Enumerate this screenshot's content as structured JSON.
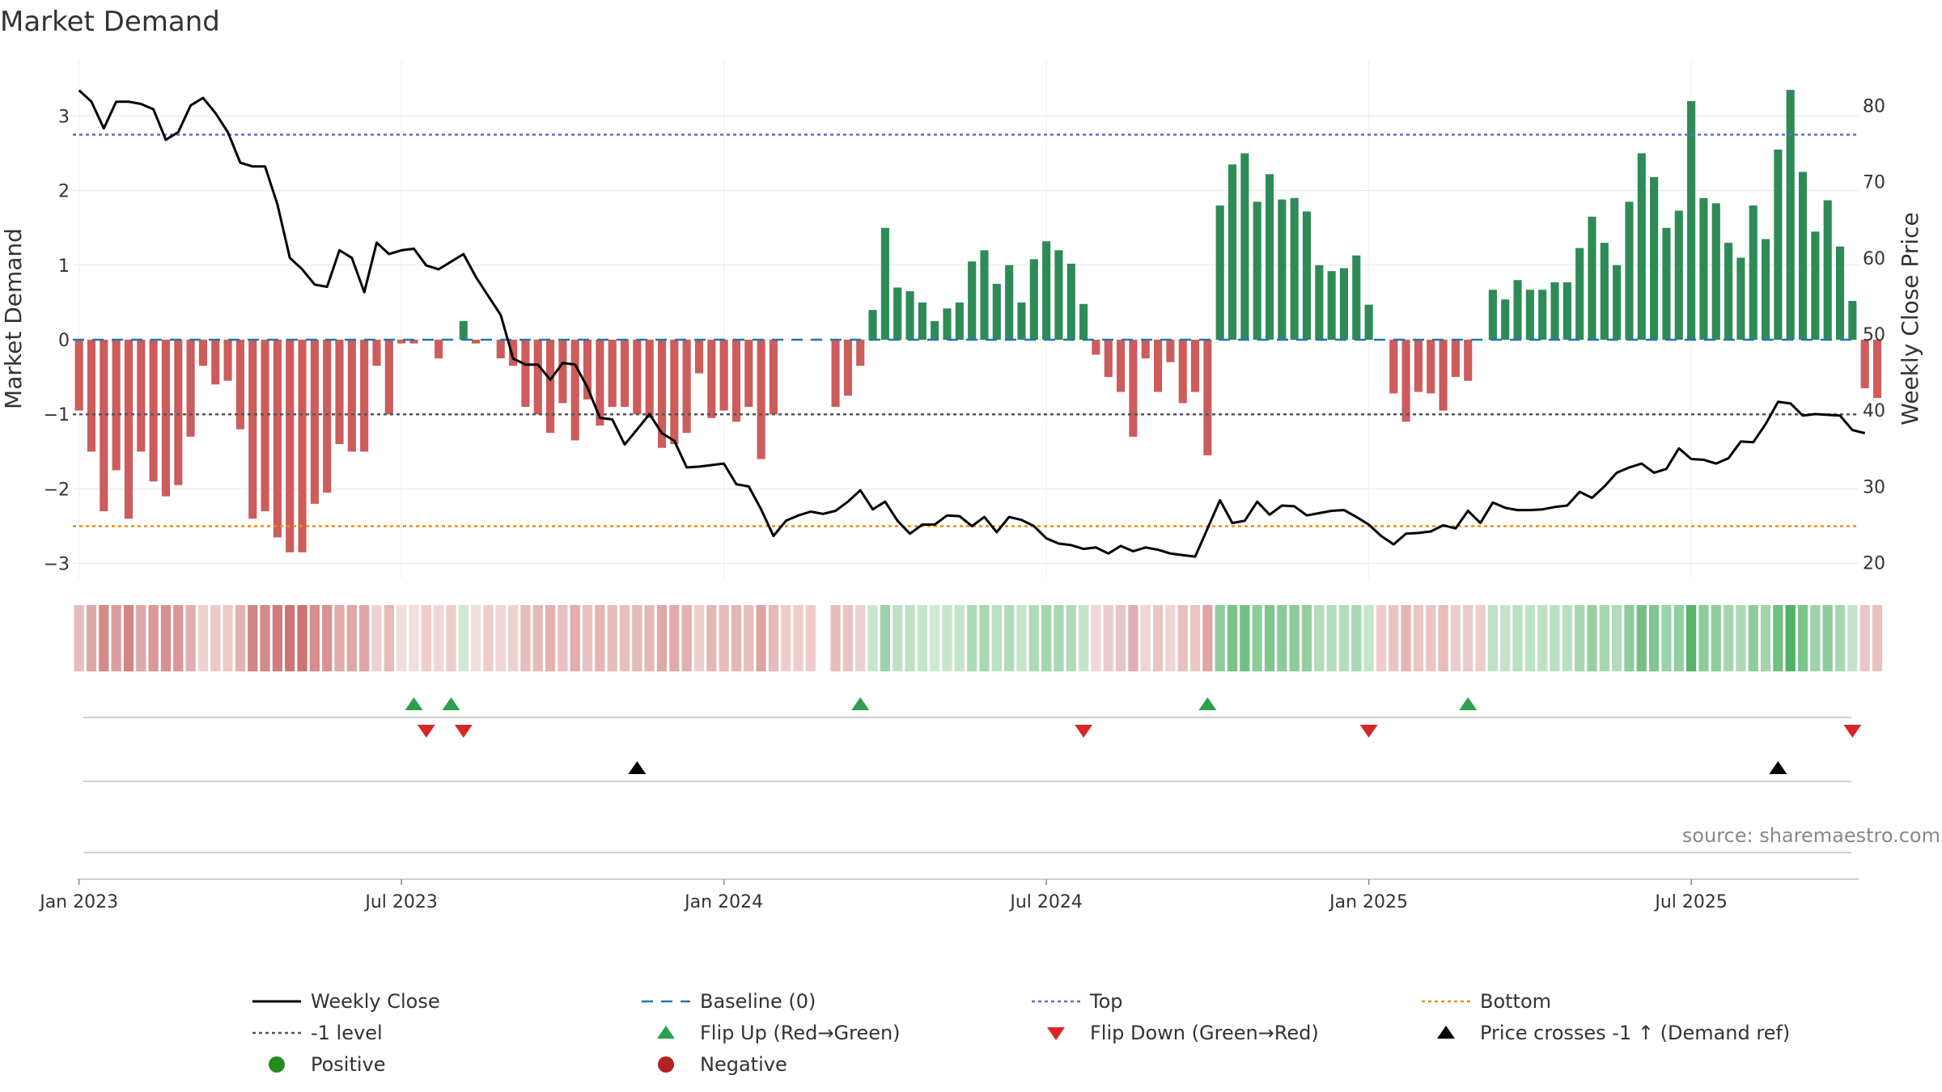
{
  "chart_data": {
    "type": "bar",
    "title": "Market Demand",
    "ylabel_left": "Market Demand",
    "ylabel_right": "Weekly Close Price",
    "ylim_left": [
      -3.3,
      3.7
    ],
    "ylim_right": [
      18,
      83
    ],
    "yticks_left": [
      "3",
      "2",
      "1",
      "0",
      "−1",
      "−2",
      "−3"
    ],
    "yticks_left_values": [
      3,
      2,
      1,
      0,
      -1,
      -2,
      -3
    ],
    "yticks_right": [
      "80",
      "70",
      "60",
      "50",
      "40",
      "30",
      "20"
    ],
    "yticks_right_values": [
      80,
      70,
      60,
      50,
      40,
      30,
      20
    ],
    "xticks": [
      "Jan 2023",
      "Jul 2023",
      "Jan 2024",
      "Jul 2024",
      "Jan 2025",
      "Jul 2025"
    ],
    "xticks_week_index": [
      0.5,
      26.5,
      52.5,
      78.5,
      104.5,
      130.5
    ],
    "levels": {
      "top": 2.75,
      "bottom": -2.5,
      "minus_one": -1,
      "baseline": 0
    },
    "weeks": 144,
    "gap_week": 60,
    "demand": [
      -0.95,
      -1.5,
      -2.3,
      -1.75,
      -2.4,
      -1.5,
      -1.9,
      -2.1,
      -1.95,
      -1.3,
      -0.35,
      -0.6,
      -0.55,
      -1.2,
      -2.4,
      -2.3,
      -2.65,
      -2.85,
      -2.85,
      -2.2,
      -2.05,
      -1.4,
      -1.5,
      -1.5,
      -0.35,
      -1.0,
      -0.05,
      -0.05,
      0.0,
      -0.25,
      0.0,
      0.25,
      -0.05,
      0.0,
      -0.25,
      -0.35,
      -0.9,
      -1.0,
      -1.25,
      -0.85,
      -1.35,
      -0.8,
      -1.15,
      -0.9,
      -0.9,
      -1.0,
      -1.05,
      -1.45,
      -1.4,
      -1.25,
      -0.45,
      -1.05,
      -0.95,
      -1.1,
      -0.9,
      -1.6,
      -1.0,
      0.0,
      0.0,
      0.0,
      null,
      -0.9,
      -0.75,
      -0.35,
      0.4,
      1.5,
      0.7,
      0.65,
      0.5,
      0.25,
      0.42,
      0.5,
      1.05,
      1.2,
      0.75,
      1.0,
      0.5,
      1.08,
      1.32,
      1.2,
      1.02,
      0.48,
      -0.2,
      -0.5,
      -0.7,
      -1.3,
      -0.25,
      -0.7,
      -0.3,
      -0.85,
      -0.7,
      -1.55,
      1.8,
      2.35,
      2.5,
      1.85,
      2.22,
      1.88,
      1.9,
      1.72,
      1.0,
      0.92,
      0.96,
      1.13,
      0.47,
      0.0,
      -0.72,
      -1.1,
      -0.7,
      -0.72,
      -0.95,
      -0.5,
      -0.55,
      0.0,
      0.67,
      0.54,
      0.8,
      0.67,
      0.67,
      0.77,
      0.77,
      1.23,
      1.65,
      1.3,
      1.0,
      1.85,
      2.5,
      2.18,
      1.5,
      1.73,
      3.2,
      1.9,
      1.83,
      1.3,
      1.1,
      1.8,
      1.35,
      2.55,
      3.35,
      2.25,
      1.45,
      1.87,
      1.25,
      0.52,
      -0.65,
      -0.78
    ],
    "weekly_close": [
      82,
      80.5,
      77,
      80.5,
      80.5,
      80.2,
      79.5,
      75.5,
      76.5,
      80,
      81,
      79,
      76.5,
      72.5,
      72,
      72,
      67,
      60,
      58.5,
      56.5,
      56.2,
      61,
      60,
      55.5,
      62,
      60.5,
      61,
      61.2,
      59,
      58.5,
      59.5,
      60.5,
      57.5,
      55,
      52.5,
      46.8,
      46,
      46,
      44,
      46.2,
      46,
      43,
      39,
      38.8,
      35.5,
      37.5,
      39.5,
      37,
      36,
      32.5,
      32.6,
      32.8,
      33,
      30.3,
      30,
      27,
      23.5,
      25.5,
      26.2,
      26.7,
      26.4,
      26.8,
      28,
      29.5,
      27,
      28,
      25.5,
      23.8,
      25,
      25,
      26.2,
      26.1,
      24.8,
      26,
      24,
      26,
      25.6,
      24.8,
      23.2,
      22.5,
      22.3,
      21.8,
      22,
      21.2,
      22.2,
      21.5,
      22,
      21.7,
      21.2,
      21,
      20.8,
      24.5,
      28.2,
      25.2,
      25.5,
      28,
      26.3,
      27.5,
      27.4,
      26.2,
      26.5,
      26.8,
      26.9,
      26,
      25,
      23.5,
      22.4,
      23.8,
      23.9,
      24.1,
      24.9,
      24.5,
      26.8,
      25.2,
      27.9,
      27.2,
      26.9,
      26.9,
      27,
      27.3,
      27.5,
      29.3,
      28.5,
      30,
      31.8,
      32.5,
      33,
      31.8,
      32.3,
      35,
      33.6,
      33.5,
      33,
      33.7,
      35.9,
      35.8,
      38.2,
      41.1,
      40.9,
      39.3,
      39.5,
      39.4,
      39.3,
      37.4,
      37
    ],
    "flip_up_weeks": [
      27,
      30,
      63,
      91,
      112
    ],
    "flip_down_weeks": [
      28,
      31,
      81,
      104,
      143
    ],
    "cross_minus1_up_weeks": [
      45,
      137
    ],
    "source": "source: sharemaestro.com",
    "legend": [
      {
        "label": "Weekly Close",
        "marker": "solid-line",
        "color": "#000000"
      },
      {
        "label": "Baseline (0)",
        "marker": "dashed-line",
        "color": "#1f77b4"
      },
      {
        "label": "Top",
        "marker": "dotted-line",
        "color": "#6a6ac8"
      },
      {
        "label": "Bottom",
        "marker": "dotted-line",
        "color": "#e8901a"
      },
      {
        "label": "-1 level",
        "marker": "dotted-line",
        "color": "#555555"
      },
      {
        "label": "Flip Up (Red→Green)",
        "marker": "triangle-up",
        "color": "#2ca04c"
      },
      {
        "label": "Flip Down (Green→Red)",
        "marker": "triangle-down",
        "color": "#d62728"
      },
      {
        "label": "Price crosses -1 ↑ (Demand ref)",
        "marker": "triangle-up",
        "color": "#000000"
      },
      {
        "label": "Positive",
        "marker": "circle",
        "color": "#228b22"
      },
      {
        "label": "Negative",
        "marker": "circle",
        "color": "#b22222"
      }
    ]
  },
  "colors": {
    "positive_bar": "#2e8b57",
    "negative_bar": "#cd5c5c",
    "grid": "#e6e6e6",
    "axis": "#d0d0d0"
  }
}
